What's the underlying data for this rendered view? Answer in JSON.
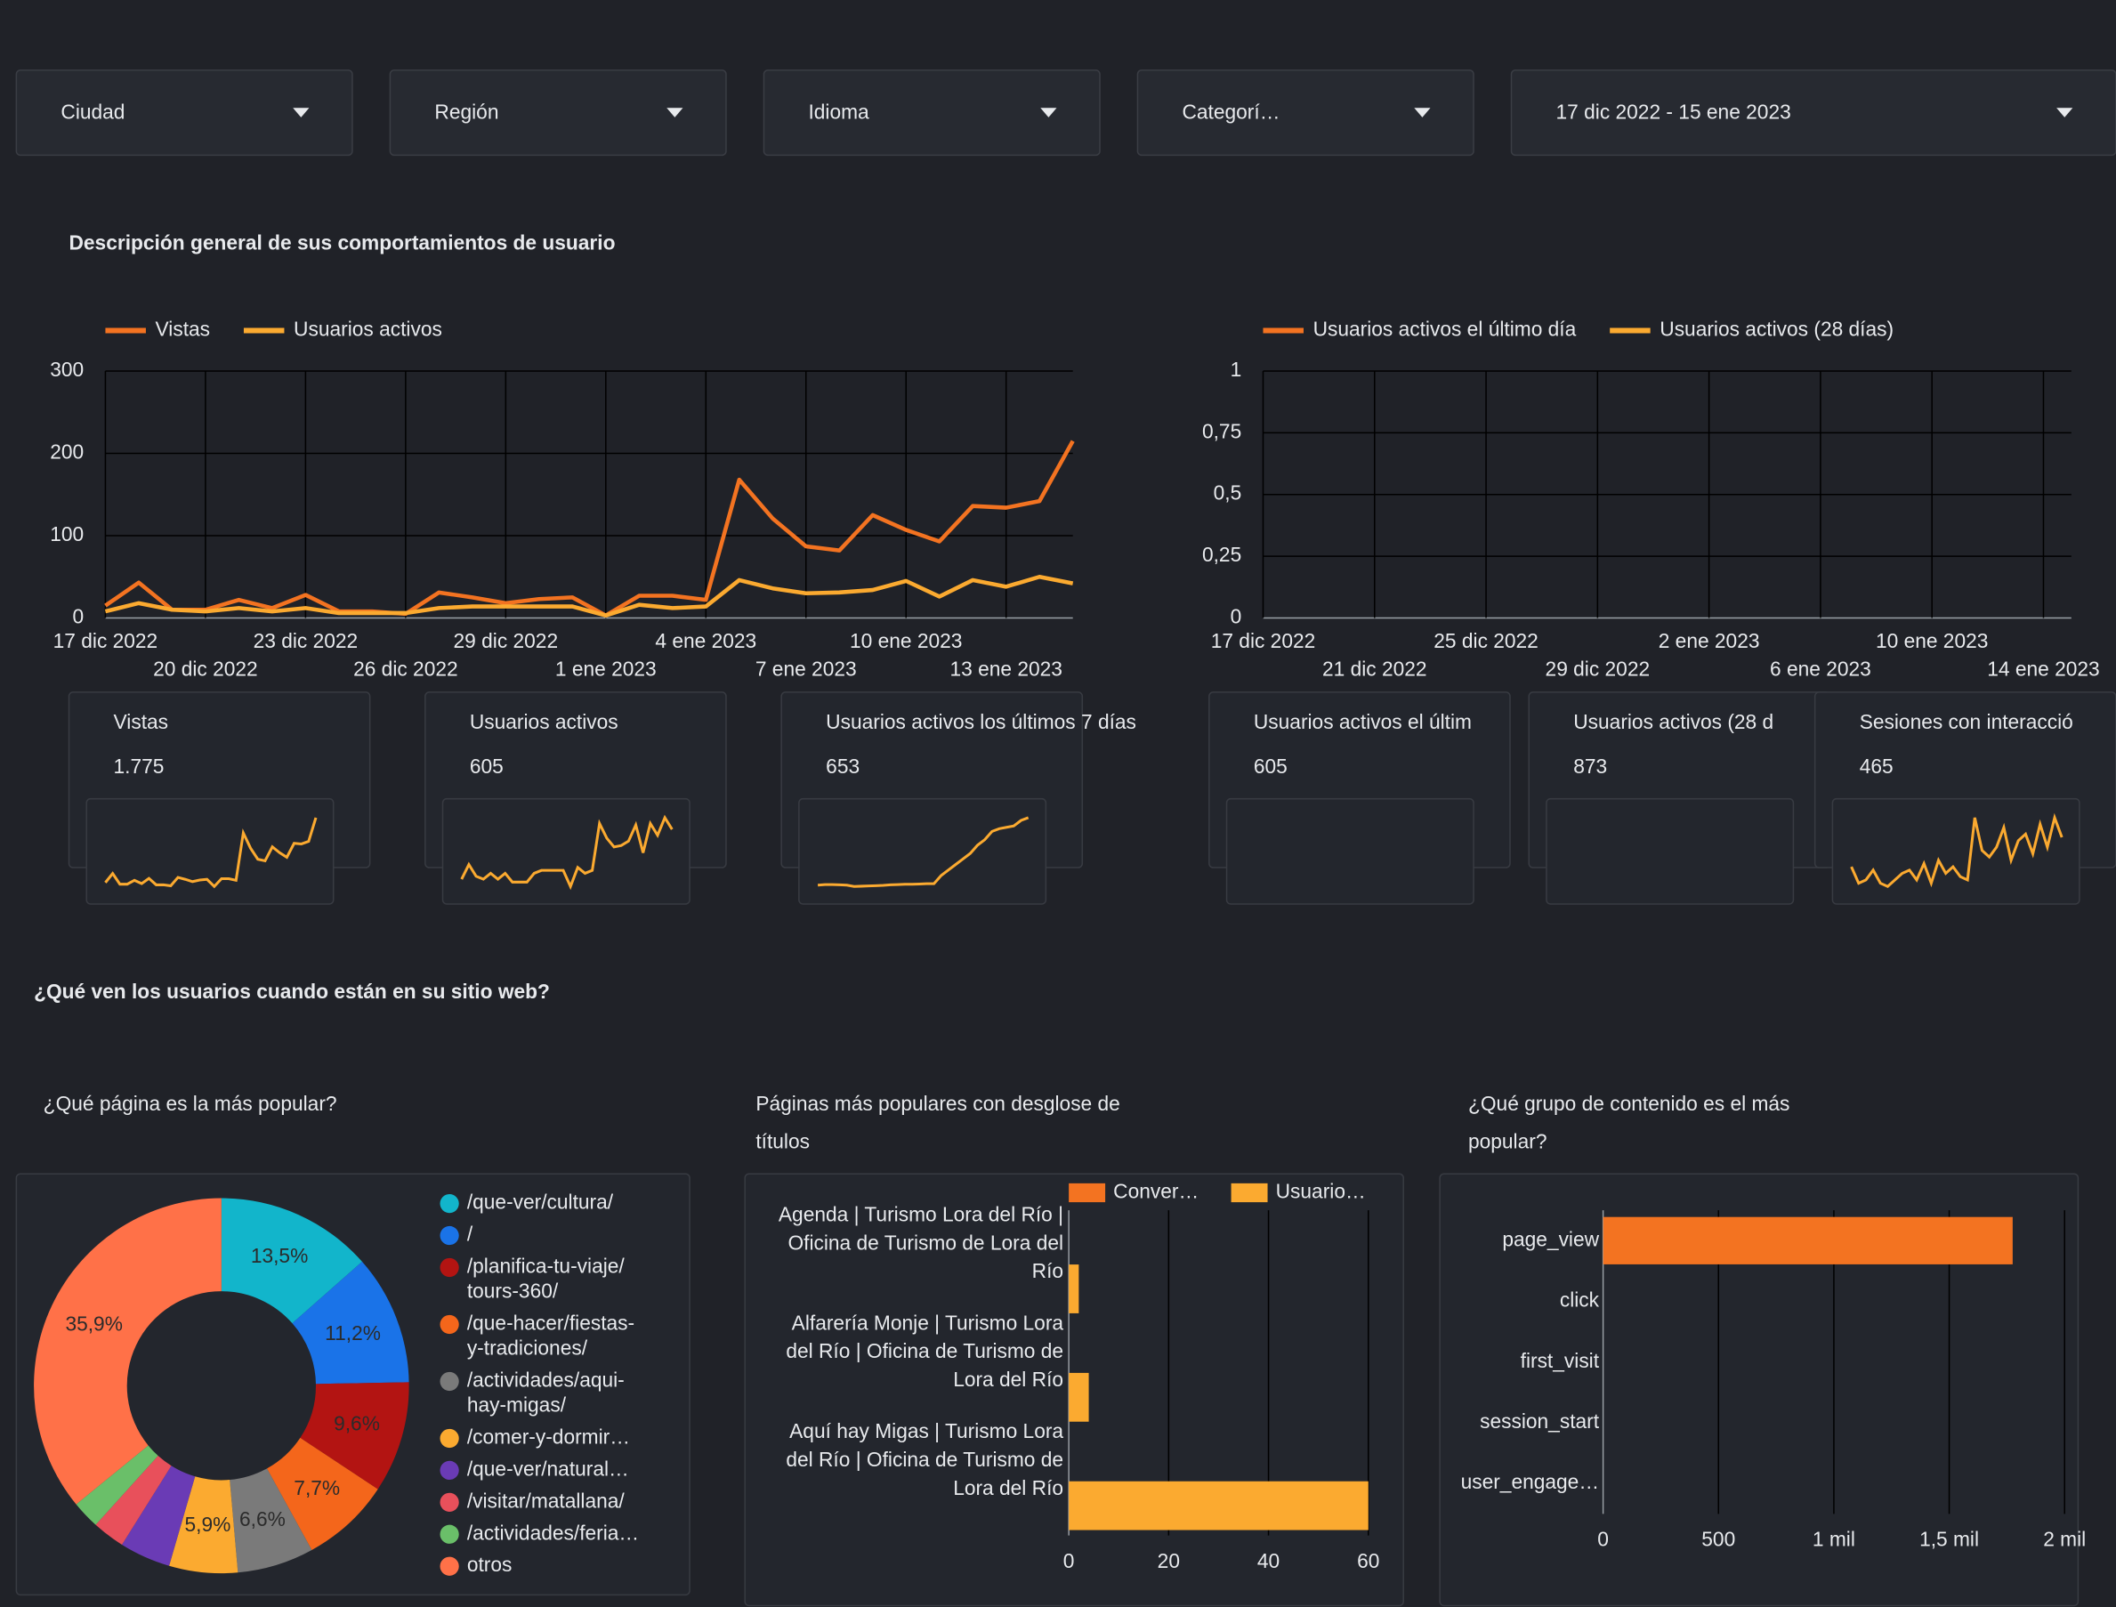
{
  "filters": [
    "Ciudad",
    "Región",
    "Idioma",
    "Categorí…",
    "17 dic 2022 - 15 ene 2023"
  ],
  "sections": [
    "Descripción general de sus comportamientos de usuario",
    "¿Qué ven los usuarios cuando están en su sitio web?"
  ],
  "scorecards": [
    {
      "label": "Vistas",
      "value": 1775,
      "value_label": "1.775",
      "sparkline": [
        15,
        43,
        10,
        10,
        22,
        12,
        28,
        8,
        8,
        5,
        31,
        25,
        18,
        23,
        25,
        3,
        27,
        27,
        22,
        168,
        121,
        87,
        82,
        125,
        107,
        93,
        136,
        134,
        142,
        215
      ]
    },
    {
      "label": "Usuarios activos",
      "value": 605,
      "sparkline": [
        8,
        18,
        10,
        8,
        12,
        8,
        12,
        6,
        6,
        6,
        12,
        14,
        14,
        14,
        14,
        3,
        16,
        12,
        14,
        46,
        36,
        30,
        31,
        34,
        45,
        26,
        46,
        38,
        50,
        42
      ]
    },
    {
      "label": "Usuarios activos los últimos 7 días",
      "value": 653,
      "sparkline": [
        95,
        97,
        97,
        96,
        95,
        90,
        91,
        92,
        93,
        94,
        96,
        97,
        98,
        98,
        99,
        100,
        100,
        130,
        150,
        170,
        190,
        210,
        240,
        260,
        290,
        300,
        305,
        310,
        330,
        340
      ]
    },
    {
      "label": "Usuarios activos el últim",
      "value": 605
    },
    {
      "label": "Usuarios activos (28 d",
      "value": 873
    },
    {
      "label": "Sesiones con interacció",
      "value": 465,
      "sparkline": [
        10,
        5,
        6,
        9,
        5,
        4,
        6,
        8,
        9,
        6,
        11,
        5,
        12,
        8,
        10,
        7,
        6,
        25,
        15,
        13,
        16,
        22,
        12,
        18,
        20,
        14,
        23,
        16,
        25,
        19
      ]
    }
  ],
  "chart_data": [
    {
      "type": "line",
      "x": [
        "17 dic 2022",
        null,
        null,
        "20 dic 2022",
        null,
        null,
        "23 dic 2022",
        null,
        null,
        "26 dic 2022",
        null,
        null,
        "29 dic 2022",
        null,
        null,
        "1 ene 2023",
        null,
        null,
        "4 ene 2023",
        null,
        null,
        "7 ene 2023",
        null,
        null,
        "10 ene 2023",
        null,
        null,
        "13 ene 2023",
        null,
        null
      ],
      "series": [
        {
          "name": "Vistas",
          "color": "#f37321",
          "values": [
            15,
            43,
            10,
            10,
            22,
            12,
            28,
            8,
            8,
            5,
            31,
            25,
            18,
            23,
            25,
            3,
            27,
            27,
            22,
            168,
            121,
            87,
            82,
            125,
            107,
            93,
            136,
            134,
            142,
            215
          ]
        },
        {
          "name": "Usuarios activos",
          "color": "#fbaa30",
          "values": [
            8,
            18,
            10,
            8,
            12,
            8,
            12,
            6,
            6,
            6,
            12,
            14,
            14,
            14,
            14,
            3,
            16,
            12,
            14,
            46,
            36,
            30,
            31,
            34,
            45,
            26,
            46,
            38,
            50,
            42
          ]
        }
      ],
      "ylim": [
        0,
        300
      ],
      "yticks": [
        0,
        100,
        200,
        300
      ],
      "grid": true
    },
    {
      "type": "line",
      "x": [
        "17 dic 2022",
        null,
        null,
        null,
        "21 dic 2022",
        null,
        null,
        null,
        "25 dic 2022",
        null,
        null,
        null,
        "29 dic 2022",
        null,
        null,
        null,
        "2 ene 2023",
        null,
        null,
        null,
        "6 ene 2023",
        null,
        null,
        null,
        "10 ene 2023",
        null,
        null,
        null,
        "14 ene 2023",
        null
      ],
      "series": [
        {
          "name": "Usuarios activos el último día",
          "color": "#f37321"
        },
        {
          "name": "Usuarios activos (28 días)",
          "color": "#fbaa30"
        }
      ],
      "ylim": [
        0,
        1
      ],
      "yticks": [
        0,
        {
          "value": 0.25,
          "label": "0,25"
        },
        {
          "value": 0.5,
          "label": "0,5"
        },
        {
          "value": 0.75,
          "label": "0,75"
        },
        1
      ],
      "grid": true
    },
    {
      "type": "pie",
      "donut": true,
      "title": "¿Qué página es la más popular?",
      "categories": [
        "/que-ver/cultura/",
        "/",
        "/planifica-tu-viaje/tours-360/",
        "/que-hacer/fiestas-y-tradiciones/",
        "/actividades/aqui-hay-migas/",
        "/comer-y-dormir…",
        "/que-ver/natural…",
        "/visitar/matallana/",
        "/actividades/feria…",
        "otros"
      ],
      "values": [
        13.5,
        11.2,
        9.6,
        7.7,
        6.6,
        5.9,
        4.4,
        2.8,
        2.4,
        35.9
      ],
      "value_labels": [
        "13,5%",
        "11,2%",
        "9,6%",
        "7,7%",
        "6,6%",
        "5,9%",
        null,
        null,
        null,
        "35,9%"
      ],
      "colors": [
        "#12b5cb",
        "#1a73e8",
        "#b31412",
        "#f4661b",
        "#7a7a7a",
        "#fbaa30",
        "#6a3bb5",
        "#e8505b",
        "#6abf69",
        "#ff7148"
      ]
    },
    {
      "type": "bar",
      "orientation": "horizontal",
      "title": "Páginas más populares con desglose de títulos",
      "categories": [
        "Agenda | Turismo Lora del Río | Oficina de Turismo de Lora del Río",
        "Alfarería Monje | Turismo Lora del Río | Oficina de Turismo de Lora del Río",
        "Aquí hay Migas | Turismo Lora del Río | Oficina de Turismo de Lora del Río"
      ],
      "series": [
        {
          "name": "Conver…",
          "color": "#f37321",
          "values": [
            0,
            0,
            0
          ]
        },
        {
          "name": "Usuario…",
          "color": "#fbaa30",
          "values": [
            2,
            4,
            60
          ]
        }
      ],
      "xlim": [
        0,
        60
      ],
      "xticks": [
        0,
        20,
        40,
        60
      ],
      "grid": true
    },
    {
      "type": "bar",
      "orientation": "horizontal",
      "title": "¿Qué grupo de contenido es el más popular?",
      "categories": [
        "page_view",
        "click",
        "first_visit",
        "session_start",
        "user_engage…"
      ],
      "values": [
        1775,
        0,
        0,
        0,
        0
      ],
      "color": "#f37321",
      "xlim": [
        0,
        2000
      ],
      "xticks": [
        0,
        500,
        {
          "value": 1000,
          "label": "1 mil"
        },
        {
          "value": 1500,
          "label": "1,5 mil"
        },
        {
          "value": 2000,
          "label": "2 mil"
        }
      ],
      "grid": true
    }
  ]
}
